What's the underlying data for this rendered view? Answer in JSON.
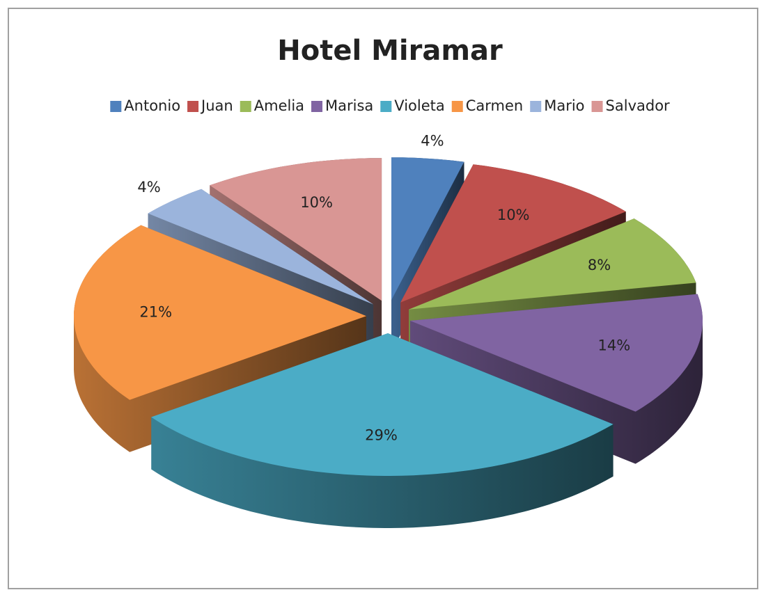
{
  "chart_data": {
    "type": "pie",
    "title": "Hotel Miramar",
    "categories": [
      "Antonio",
      "Juan",
      "Amelia",
      "Marisa",
      "Violeta",
      "Carmen",
      "Mario",
      "Salvador"
    ],
    "values": [
      4,
      10,
      8,
      14,
      29,
      21,
      4,
      10
    ],
    "value_labels": [
      "4%",
      "10%",
      "8%",
      "14%",
      "29%",
      "21%",
      "4%",
      "10%"
    ],
    "colors": [
      "#4f81bd",
      "#c0504d",
      "#9bbb59",
      "#8064a2",
      "#4bacc6",
      "#f79646",
      "#9bb4dc",
      "#d99694"
    ],
    "legend": "top"
  }
}
